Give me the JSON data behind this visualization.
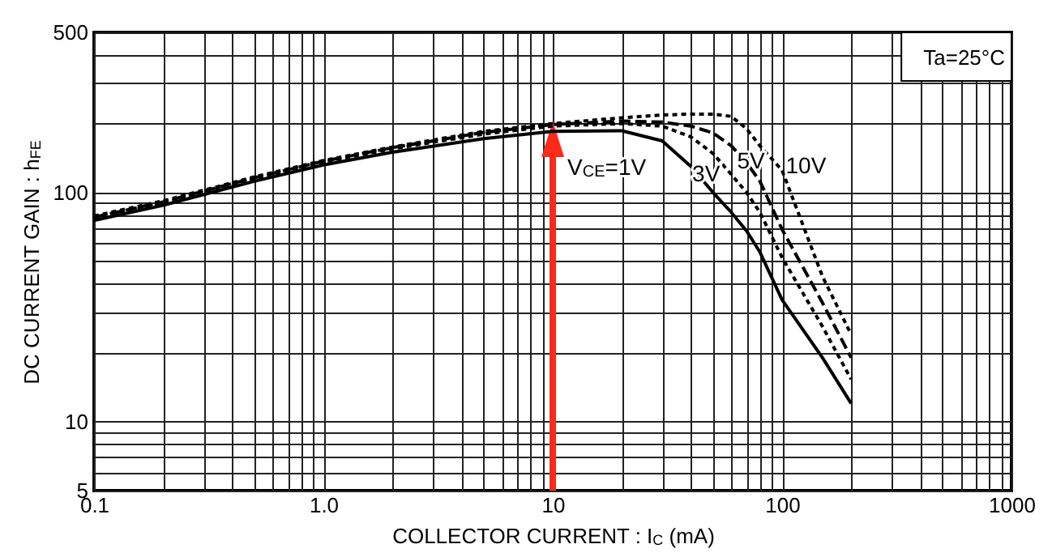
{
  "chart_data": {
    "type": "line",
    "xlabel": "COLLECTOR CURRENT : I$_{C}$ (mA)",
    "ylabel": "DC CURRENT GAIN : h$_{FE}$",
    "annotations": [
      "Ta=25°C"
    ],
    "log": "xy",
    "grid": true,
    "xlim": [
      0.1,
      1000
    ],
    "ylim": [
      5,
      500
    ],
    "xticks": [
      0.1,
      {
        "value": 0.2,
        "label": null
      },
      {
        "value": 0.3,
        "label": null
      },
      {
        "value": 0.4,
        "label": null
      },
      {
        "value": 0.5,
        "label": null
      },
      {
        "value": 0.6,
        "label": null
      },
      {
        "value": 0.7,
        "label": null
      },
      {
        "value": 0.8,
        "label": null
      },
      {
        "value": 0.9,
        "label": null
      },
      {
        "value": 1,
        "label": "1.0"
      },
      {
        "value": 2,
        "label": null
      },
      {
        "value": 3,
        "label": null
      },
      {
        "value": 4,
        "label": null
      },
      {
        "value": 5,
        "label": null
      },
      {
        "value": 6,
        "label": null
      },
      {
        "value": 7,
        "label": null
      },
      {
        "value": 8,
        "label": null
      },
      {
        "value": 9,
        "label": null
      },
      10,
      {
        "value": 20,
        "label": null
      },
      {
        "value": 30,
        "label": null
      },
      {
        "value": 40,
        "label": null
      },
      {
        "value": 50,
        "label": null
      },
      {
        "value": 60,
        "label": null
      },
      {
        "value": 70,
        "label": null
      },
      {
        "value": 80,
        "label": null
      },
      {
        "value": 90,
        "label": null
      },
      100,
      {
        "value": 200,
        "label": null
      },
      {
        "value": 300,
        "label": null
      },
      {
        "value": 400,
        "label": null
      },
      {
        "value": 500,
        "label": null
      },
      {
        "value": 600,
        "label": null
      },
      {
        "value": 700,
        "label": null
      },
      {
        "value": 800,
        "label": null
      },
      {
        "value": 900,
        "label": null
      },
      1000
    ],
    "yticks": [
      5,
      {
        "value": 6,
        "label": null
      },
      {
        "value": 7,
        "label": null
      },
      {
        "value": 8,
        "label": null
      },
      {
        "value": 9,
        "label": null
      },
      10,
      {
        "value": 20,
        "label": null
      },
      {
        "value": 30,
        "label": null
      },
      {
        "value": 40,
        "label": null
      },
      {
        "value": 50,
        "label": null
      },
      {
        "value": 60,
        "label": null
      },
      {
        "value": 70,
        "label": null
      },
      {
        "value": 80,
        "label": null
      },
      {
        "value": 90,
        "label": null
      },
      100,
      {
        "value": 200,
        "label": null
      },
      {
        "value": 300,
        "label": null
      },
      {
        "value": 400,
        "label": null
      },
      500
    ],
    "x": [
      0.1,
      0.2,
      0.5,
      1,
      2,
      5,
      10,
      20,
      30,
      40,
      50,
      60,
      70,
      80,
      100,
      150,
      200
    ],
    "series": [
      {
        "name": "V$_{CE}$=1V",
        "color": "#000000",
        "line_style": "solid",
        "values": [
          75.5,
          88,
          112,
          132,
          150,
          172,
          185,
          186,
          168,
          130,
          100,
          82,
          68,
          55,
          34,
          19,
          12
        ]
      },
      {
        "name": "3V",
        "color": "#000000",
        "line_style": "dotted",
        "values": [
          77,
          90,
          115,
          136,
          155,
          180,
          195,
          200,
          195,
          175,
          148,
          120,
          100,
          82,
          52,
          26,
          15.3
        ]
      },
      {
        "name": "5V",
        "color": "#000000",
        "line_style": "dashed",
        "values": [
          78,
          91,
          116,
          137,
          157,
          183,
          198,
          205,
          203,
          195,
          182,
          160,
          135,
          112,
          69,
          33,
          19
        ]
      },
      {
        "name": "10V",
        "color": "#000000",
        "line_style": "dotted",
        "values": [
          79,
          92,
          117,
          138,
          158,
          185,
          200,
          212,
          218,
          220,
          220,
          215,
          190,
          160,
          125,
          43,
          24
        ]
      }
    ]
  }
}
